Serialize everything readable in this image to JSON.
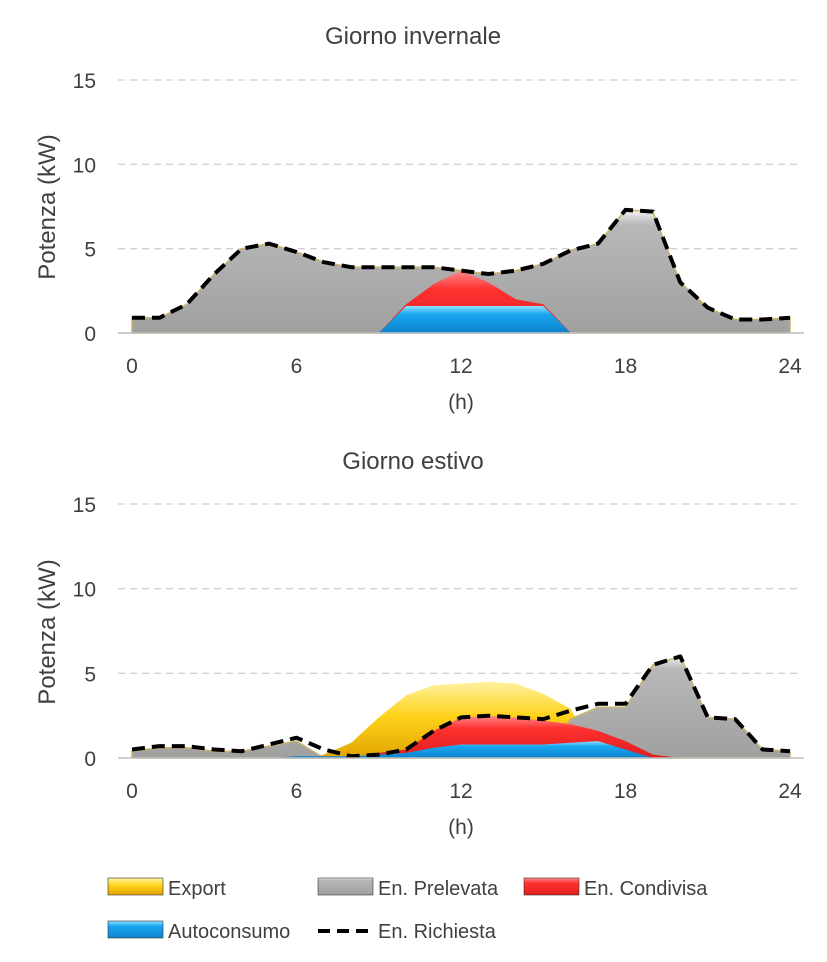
{
  "chart_data": [
    {
      "type": "area",
      "title": "Giorno invernale",
      "xlabel": "(h)",
      "ylabel": "Potenza  (kW)",
      "xlim": [
        0,
        24
      ],
      "ylim": [
        0,
        15
      ],
      "xticks": [
        0,
        6,
        12,
        18,
        24
      ],
      "yticks": [
        0,
        5,
        10,
        15
      ],
      "grid": "horizontal-dashed",
      "x": [
        0,
        1,
        2,
        3,
        4,
        5,
        6,
        7,
        8,
        9,
        10,
        11,
        12,
        13,
        14,
        15,
        16,
        17,
        18,
        19,
        20,
        21,
        22,
        23,
        24
      ],
      "series": [
        {
          "name": "Export",
          "values": [
            0,
            0,
            0,
            0,
            0,
            0,
            0,
            0,
            0,
            0,
            0,
            0,
            0,
            0,
            0,
            0,
            0,
            0,
            0,
            0,
            0,
            0,
            0,
            0,
            0
          ]
        },
        {
          "name": "En. Prelevata",
          "values": [
            0.9,
            0.9,
            1.7,
            3.5,
            5.0,
            5.3,
            4.8,
            4.2,
            3.9,
            3.9,
            3.9,
            3.9,
            3.7,
            3.5,
            3.7,
            4.1,
            4.9,
            5.3,
            7.3,
            7.2,
            3.0,
            1.5,
            0.8,
            0.8,
            0.9
          ]
        },
        {
          "name": "En. Condivisa",
          "values": [
            0,
            0,
            0,
            0,
            0,
            0,
            0,
            0,
            0,
            0,
            1.7,
            2.9,
            3.7,
            3.0,
            2.0,
            1.7,
            0,
            0,
            0,
            0,
            0,
            0,
            0,
            0,
            0
          ]
        },
        {
          "name": "Autoconsumo",
          "values": [
            0,
            0,
            0,
            0,
            0,
            0,
            0,
            0,
            0,
            0,
            1.6,
            1.6,
            1.6,
            1.6,
            1.6,
            1.6,
            0,
            0,
            0,
            0,
            0,
            0,
            0,
            0,
            0
          ]
        },
        {
          "name": "En. Richiesta",
          "values": [
            0.9,
            0.9,
            1.7,
            3.5,
            5.0,
            5.3,
            4.8,
            4.2,
            3.9,
            3.9,
            3.9,
            3.9,
            3.7,
            3.5,
            3.7,
            4.1,
            4.9,
            5.3,
            7.3,
            7.2,
            3.0,
            1.5,
            0.8,
            0.8,
            0.9
          ]
        }
      ]
    },
    {
      "type": "area",
      "title": "Giorno estivo",
      "xlabel": "(h)",
      "ylabel": "Potenza  (kW)",
      "xlim": [
        0,
        24
      ],
      "ylim": [
        0,
        15
      ],
      "xticks": [
        0,
        6,
        12,
        18,
        24
      ],
      "yticks": [
        0,
        5,
        10,
        15
      ],
      "grid": "horizontal-dashed",
      "x": [
        0,
        1,
        2,
        3,
        4,
        5,
        6,
        7,
        8,
        9,
        10,
        11,
        12,
        13,
        14,
        15,
        16,
        17,
        18,
        19,
        20,
        21,
        22,
        23,
        24
      ],
      "series": [
        {
          "name": "Export",
          "values": [
            0,
            0,
            0,
            0,
            0,
            0,
            0,
            0.2,
            0.9,
            2.4,
            3.7,
            4.3,
            4.4,
            4.5,
            4.4,
            3.8,
            2.9,
            0,
            0,
            0,
            0,
            0,
            0,
            0,
            0
          ]
        },
        {
          "name": "En. Prelevata",
          "values": [
            0.4,
            0.6,
            0.6,
            0.4,
            0.4,
            0.7,
            1.0,
            0,
            0,
            0,
            0,
            0,
            0,
            0,
            0,
            0,
            2.3,
            3.0,
            3.0,
            5.5,
            6.0,
            2.4,
            2.3,
            0.5,
            0.4
          ]
        },
        {
          "name": "En. Condivisa",
          "values": [
            0,
            0,
            0,
            0,
            0,
            0,
            0,
            0,
            0,
            0.3,
            0.5,
            1.6,
            2.4,
            2.5,
            2.4,
            2.2,
            2.0,
            1.6,
            1.0,
            0.2,
            0,
            0,
            0,
            0,
            0
          ]
        },
        {
          "name": "Autoconsumo",
          "values": [
            0,
            0,
            0,
            0,
            0,
            0,
            0.1,
            0.1,
            0.1,
            0.2,
            0.3,
            0.6,
            0.8,
            0.8,
            0.8,
            0.8,
            0.9,
            1.0,
            0.5,
            0,
            0,
            0,
            0,
            0,
            0
          ]
        },
        {
          "name": "En. Richiesta",
          "values": [
            0.5,
            0.7,
            0.7,
            0.5,
            0.4,
            0.8,
            1.2,
            0.5,
            0.1,
            0.2,
            0.5,
            1.6,
            2.4,
            2.5,
            2.4,
            2.3,
            2.8,
            3.2,
            3.2,
            5.5,
            6.0,
            2.4,
            2.3,
            0.5,
            0.4
          ]
        }
      ]
    }
  ],
  "legend": {
    "items": [
      {
        "label": "Export",
        "color": "#ffc000",
        "kind": "area"
      },
      {
        "label": "En. Prelevata",
        "color": "#a6a6a6",
        "kind": "area"
      },
      {
        "label": "En. Condivisa",
        "color": "#ff3b3b",
        "kind": "area"
      },
      {
        "label": "Autoconsumo",
        "color": "#1c9fe8",
        "kind": "area"
      },
      {
        "label": "En. Richiesta",
        "color": "#000000",
        "kind": "dashed-line"
      }
    ]
  },
  "colors": {
    "export": "#ffc000",
    "prelevata": "#a6a6a6",
    "condivisa": "#ff3b3b",
    "autoconsumo": "#1c9fe8",
    "richiesta": "#000000",
    "grid": "#d0d0d0",
    "text": "#404040"
  }
}
